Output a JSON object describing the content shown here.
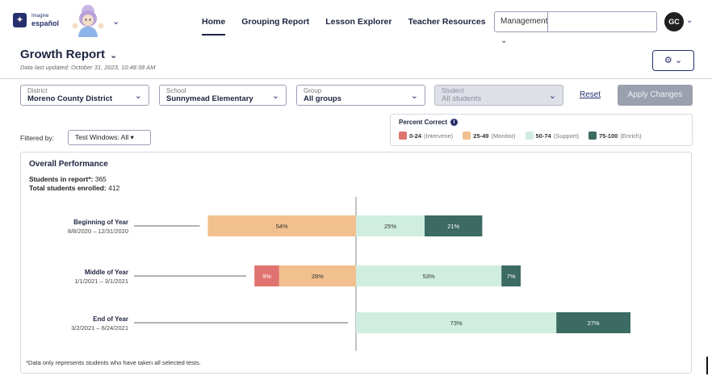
{
  "logo": {
    "line1": "Imagine",
    "line2": "español",
    "badge": "✦"
  },
  "nav": [
    {
      "label": "Home",
      "active": true
    },
    {
      "label": "Grouping Report",
      "active": false
    },
    {
      "label": "Lesson Explorer",
      "active": false
    },
    {
      "label": "Teacher Resources",
      "active": false
    }
  ],
  "search": {
    "scope": "Management ⌄",
    "placeholder": "",
    "icon": "search-icon"
  },
  "user": {
    "initials": "GC"
  },
  "page": {
    "title": "Growth Report",
    "last_updated": "Data last updated: October 31, 2023, 10:48:38 AM",
    "settings_icon": "⚙ ⌄"
  },
  "filters": {
    "district": {
      "label": "District",
      "value": "Moreno County District"
    },
    "school": {
      "label": "School",
      "value": "Sunnymead Elementary"
    },
    "group": {
      "label": "Group",
      "value": "All groups"
    },
    "student": {
      "label": "Student",
      "value": "All students"
    },
    "reset": "Reset",
    "apply": "Apply Changes",
    "filtered_by": "Filtered by:",
    "test_windows": "Test Windows: All ▾"
  },
  "legend": {
    "title": "Percent Correct",
    "items": [
      {
        "range": "0-24",
        "category": "(Intervene)",
        "color": "#e0736f"
      },
      {
        "range": "25-49",
        "category": "(Monitor)",
        "color": "#f2c08e"
      },
      {
        "range": "50-74",
        "category": "(Support)",
        "color": "#cfeee0"
      },
      {
        "range": "75-100",
        "category": "(Enrich)",
        "color": "#3b6b62"
      }
    ]
  },
  "card": {
    "title": "Overall Performance",
    "students_in_report_label": "Students in report*:",
    "students_in_report": "365",
    "total_enrolled_label": "Total students enrolled:",
    "total_enrolled": "412",
    "footnote": "*Data only represents students who have taken all selected tests."
  },
  "chart_data": {
    "type": "bar",
    "orientation": "horizontal-diverging",
    "categories": [
      "Beginning of Year",
      "Middle of Year",
      "End of Year"
    ],
    "date_ranges": [
      "8/8/2020 – 12/31/2020",
      "1/1/2021 – 3/1/2021",
      "3/2/2021 – 6/24/2021"
    ],
    "series": [
      {
        "name": "0-24 (Intervene)",
        "values": [
          0,
          9,
          0
        ],
        "color": "#e0736f",
        "side": "left"
      },
      {
        "name": "25-49 (Monitor)",
        "values": [
          54,
          28,
          0
        ],
        "color": "#f2c08e",
        "side": "left"
      },
      {
        "name": "50-74 (Support)",
        "values": [
          25,
          53,
          73
        ],
        "color": "#cfeee0",
        "side": "right"
      },
      {
        "name": "75-100 (Enrich)",
        "values": [
          21,
          7,
          27
        ],
        "color": "#3b6b62",
        "side": "right"
      }
    ],
    "value_labels": [
      [
        "",
        "54%",
        "25%",
        "21%"
      ],
      [
        "9%",
        "28%",
        "53%",
        "7%"
      ],
      [
        "",
        "",
        "73%",
        "27%"
      ]
    ]
  }
}
